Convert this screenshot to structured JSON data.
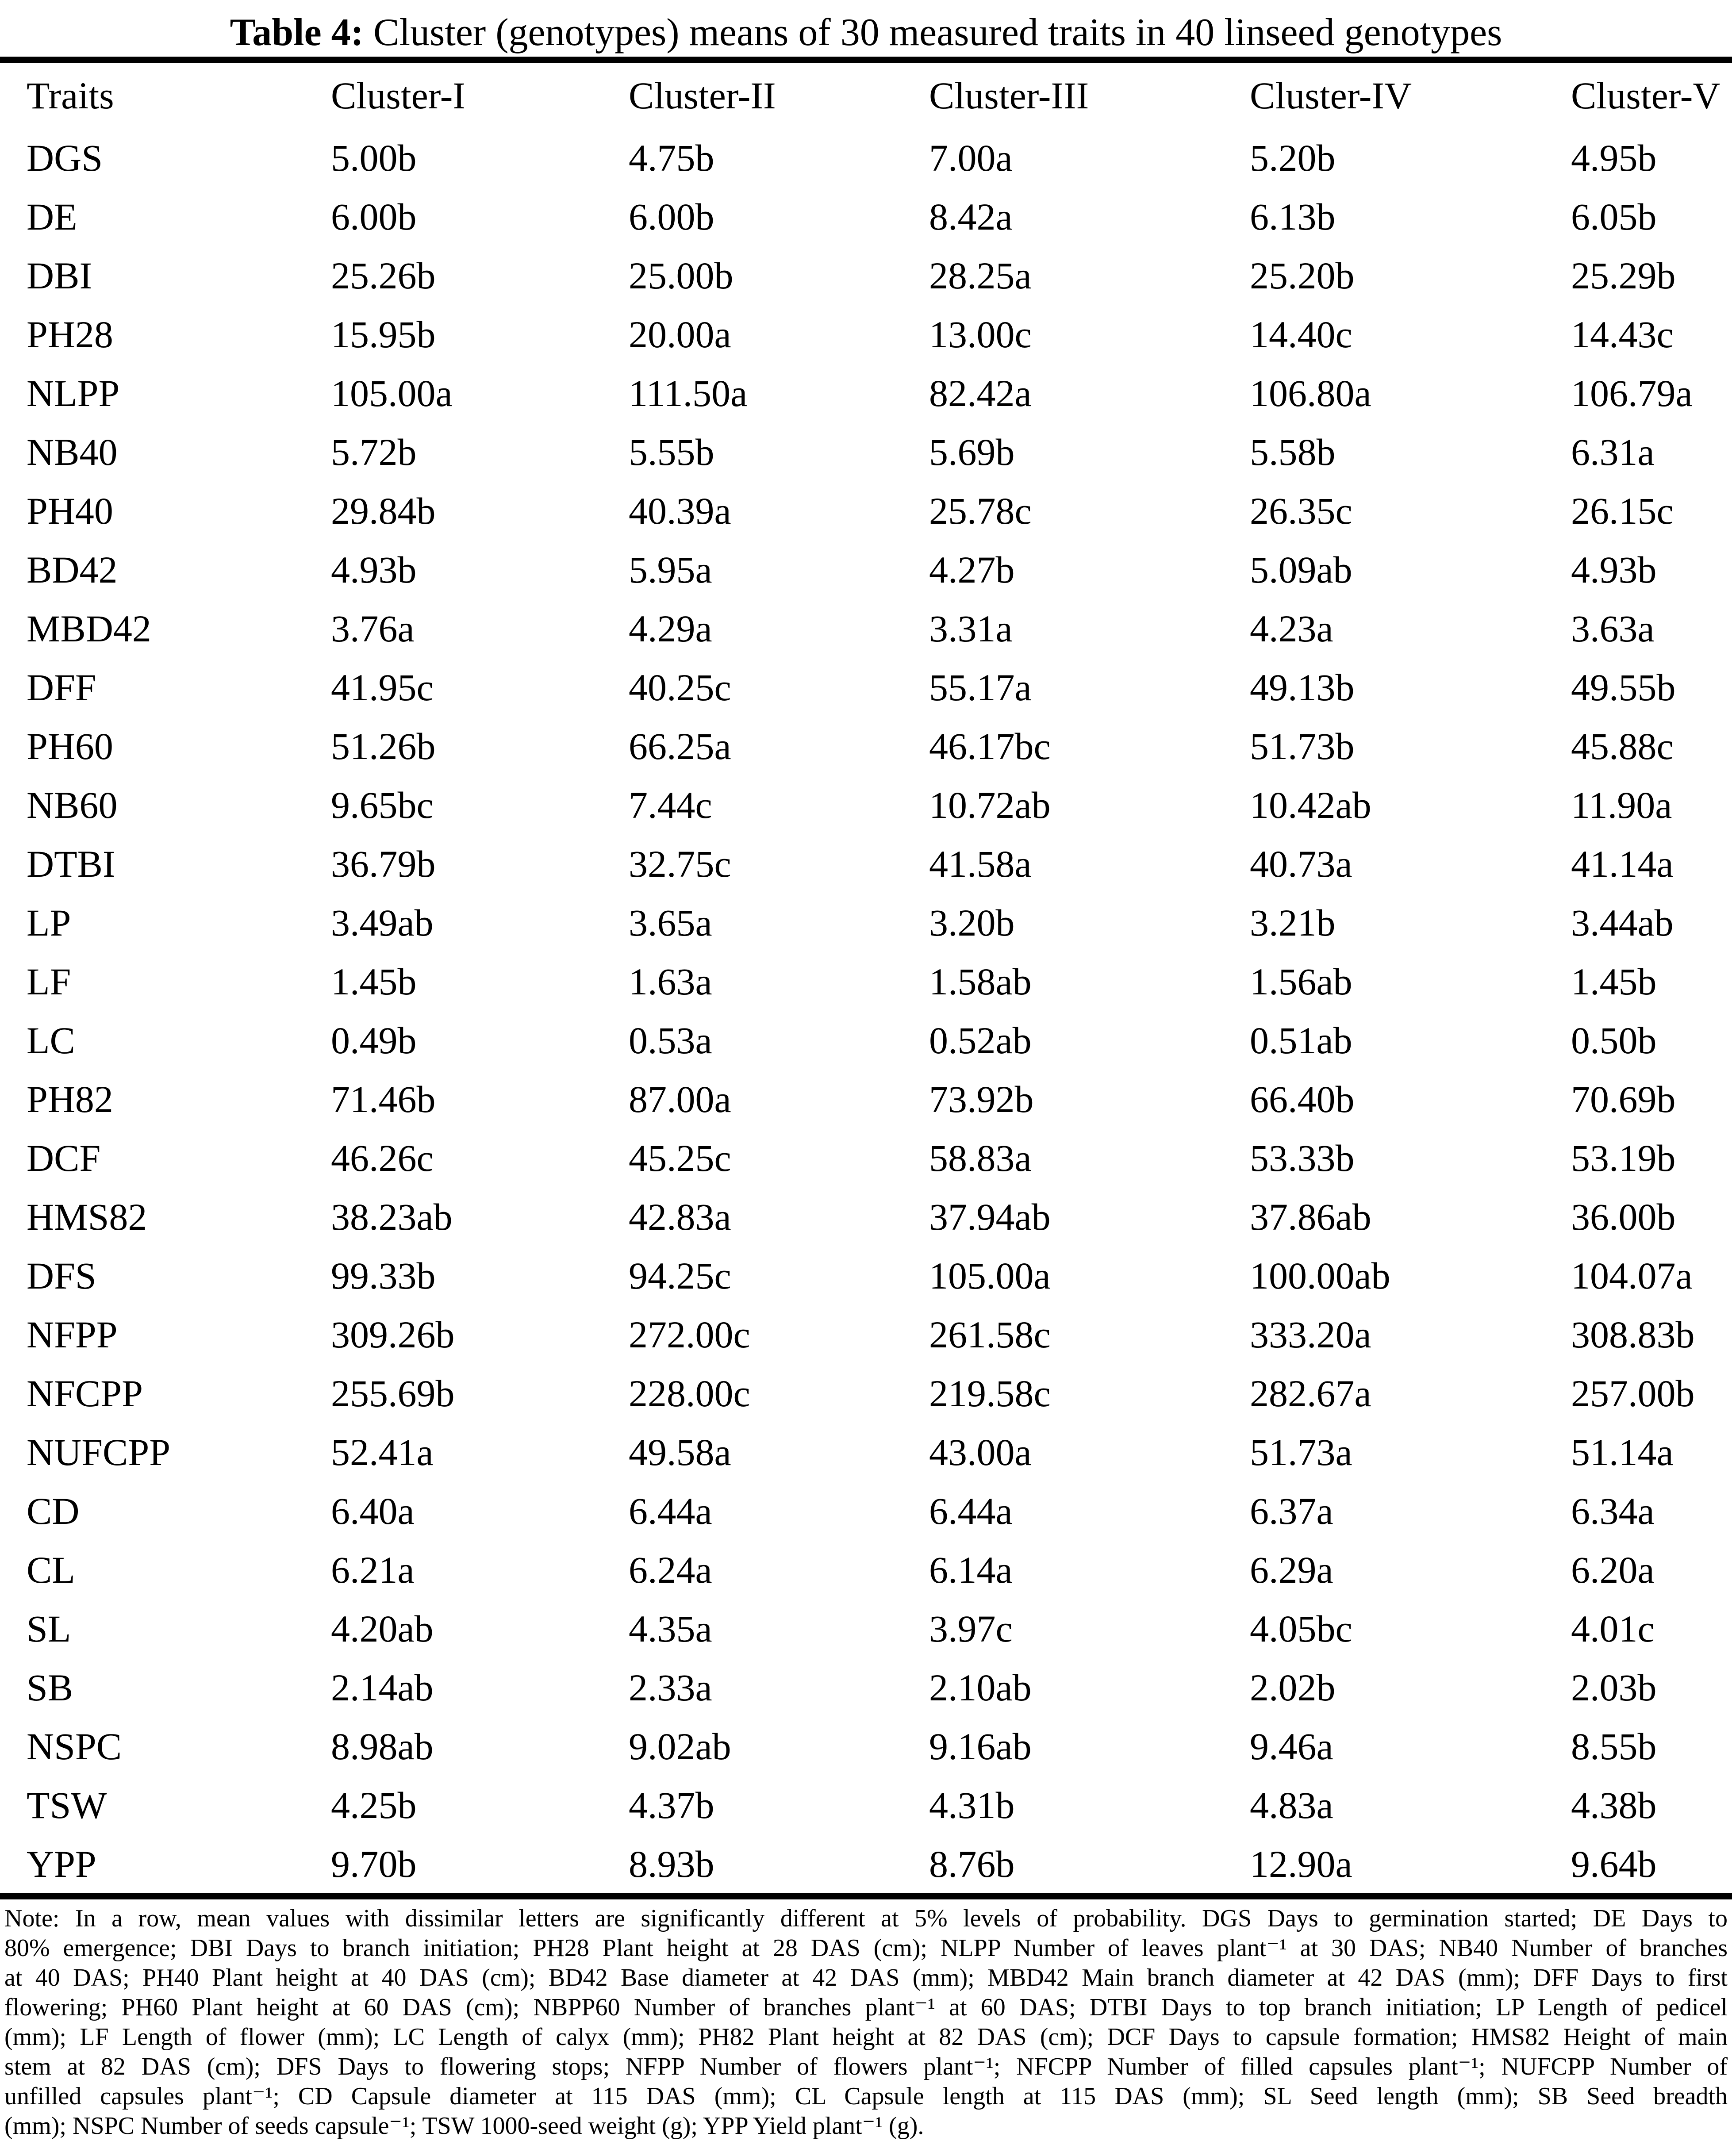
{
  "title": {
    "prefix": "Table 4:",
    "text": " Cluster (genotypes) means of 30 measured traits in 40 linseed genotypes"
  },
  "table": {
    "columns": [
      "Traits",
      "Cluster-I",
      "Cluster-II",
      "Cluster-III",
      "Cluster-IV",
      "Cluster-V"
    ],
    "rows": [
      {
        "trait": "DGS",
        "values": [
          "5.00b",
          "4.75b",
          "7.00a",
          "5.20b",
          "4.95b"
        ]
      },
      {
        "trait": "DE",
        "values": [
          "6.00b",
          "6.00b",
          "8.42a",
          "6.13b",
          "6.05b"
        ]
      },
      {
        "trait": "DBI",
        "values": [
          "25.26b",
          "25.00b",
          "28.25a",
          "25.20b",
          "25.29b"
        ]
      },
      {
        "trait": "PH28",
        "values": [
          "15.95b",
          "20.00a",
          "13.00c",
          "14.40c",
          "14.43c"
        ]
      },
      {
        "trait": "NLPP",
        "values": [
          "105.00a",
          "111.50a",
          "82.42a",
          "106.80a",
          "106.79a"
        ]
      },
      {
        "trait": "NB40",
        "values": [
          "5.72b",
          "5.55b",
          "5.69b",
          "5.58b",
          "6.31a"
        ]
      },
      {
        "trait": "PH40",
        "values": [
          "29.84b",
          "40.39a",
          "25.78c",
          "26.35c",
          "26.15c"
        ]
      },
      {
        "trait": "BD42",
        "values": [
          "4.93b",
          "5.95a",
          "4.27b",
          "5.09ab",
          "4.93b"
        ]
      },
      {
        "trait": "MBD42",
        "values": [
          "3.76a",
          "4.29a",
          "3.31a",
          "4.23a",
          "3.63a"
        ]
      },
      {
        "trait": "DFF",
        "values": [
          "41.95c",
          "40.25c",
          "55.17a",
          "49.13b",
          "49.55b"
        ]
      },
      {
        "trait": "PH60",
        "values": [
          "51.26b",
          "66.25a",
          "46.17bc",
          "51.73b",
          "45.88c"
        ]
      },
      {
        "trait": "NB60",
        "values": [
          "9.65bc",
          "7.44c",
          "10.72ab",
          "10.42ab",
          "11.90a"
        ]
      },
      {
        "trait": "DTBI",
        "values": [
          "36.79b",
          "32.75c",
          "41.58a",
          "40.73a",
          "41.14a"
        ]
      },
      {
        "trait": "LP",
        "values": [
          "3.49ab",
          "3.65a",
          "3.20b",
          "3.21b",
          "3.44ab"
        ]
      },
      {
        "trait": "LF",
        "values": [
          "1.45b",
          "1.63a",
          "1.58ab",
          "1.56ab",
          "1.45b"
        ]
      },
      {
        "trait": "LC",
        "values": [
          "0.49b",
          "0.53a",
          "0.52ab",
          "0.51ab",
          "0.50b"
        ]
      },
      {
        "trait": "PH82",
        "values": [
          "71.46b",
          "87.00a",
          "73.92b",
          "66.40b",
          "70.69b"
        ]
      },
      {
        "trait": "DCF",
        "values": [
          "46.26c",
          "45.25c",
          "58.83a",
          "53.33b",
          "53.19b"
        ]
      },
      {
        "trait": "HMS82",
        "values": [
          "38.23ab",
          "42.83a",
          "37.94ab",
          "37.86ab",
          "36.00b"
        ]
      },
      {
        "trait": "DFS",
        "values": [
          "99.33b",
          "94.25c",
          "105.00a",
          "100.00ab",
          "104.07a"
        ]
      },
      {
        "trait": "NFPP",
        "values": [
          "309.26b",
          "272.00c",
          "261.58c",
          "333.20a",
          "308.83b"
        ]
      },
      {
        "trait": "NFCPP",
        "values": [
          "255.69b",
          "228.00c",
          "219.58c",
          "282.67a",
          "257.00b"
        ]
      },
      {
        "trait": "NUFCPP",
        "values": [
          "52.41a",
          "49.58a",
          "43.00a",
          "51.73a",
          "51.14a"
        ]
      },
      {
        "trait": "CD",
        "values": [
          "6.40a",
          "6.44a",
          "6.44a",
          "6.37a",
          "6.34a"
        ]
      },
      {
        "trait": "CL",
        "values": [
          "6.21a",
          "6.24a",
          "6.14a",
          "6.29a",
          "6.20a"
        ]
      },
      {
        "trait": "SL",
        "values": [
          "4.20ab",
          "4.35a",
          "3.97c",
          "4.05bc",
          "4.01c"
        ]
      },
      {
        "trait": "SB",
        "values": [
          "2.14ab",
          "2.33a",
          "2.10ab",
          "2.02b",
          "2.03b"
        ]
      },
      {
        "trait": "NSPC",
        "values": [
          "8.98ab",
          "9.02ab",
          "9.16ab",
          "9.46a",
          "8.55b"
        ]
      },
      {
        "trait": "TSW",
        "values": [
          "4.25b",
          "4.37b",
          "4.31b",
          "4.83a",
          "4.38b"
        ]
      },
      {
        "trait": "YPP",
        "values": [
          "9.70b",
          "8.93b",
          "8.76b",
          "12.90a",
          "9.64b"
        ]
      }
    ]
  },
  "note": {
    "lines": [
      "Note: In a row, mean values with dissimilar letters are significantly different at 5% levels of probability. DGS Days to germination started; DE Days to",
      "80% emergence; DBI Days to branch initiation; PH28 Plant height at 28 DAS (cm); NLPP Number of leaves plant⁻¹ at 30 DAS; NB40 Number of branches",
      "at 40 DAS; PH40 Plant height at 40 DAS (cm); BD42 Base diameter at 42 DAS (mm); MBD42 Main branch diameter at 42 DAS (mm); DFF Days to first",
      "flowering; PH60 Plant height at 60 DAS (cm); NBPP60 Number of branches plant⁻¹ at 60 DAS; DTBI Days to top branch initiation; LP Length of pedicel",
      "(mm); LF Length of flower (mm); LC Length of calyx (mm); PH82 Plant height at 82 DAS (cm); DCF Days to capsule formation; HMS82 Height of main",
      "stem at 82 DAS (cm); DFS Days to flowering stops; NFPP Number of flowers plant⁻¹; NFCPP Number of filled capsules plant⁻¹; NUFCPP Number of",
      "unfilled capsules plant⁻¹; CD Capsule diameter at 115 DAS (mm); CL Capsule length at 115 DAS (mm); SL Seed length (mm); SB Seed breadth",
      "(mm); NSPC Number of seeds capsule⁻¹; TSW 1000-seed weight (g); YPP Yield plant⁻¹ (g)."
    ]
  }
}
